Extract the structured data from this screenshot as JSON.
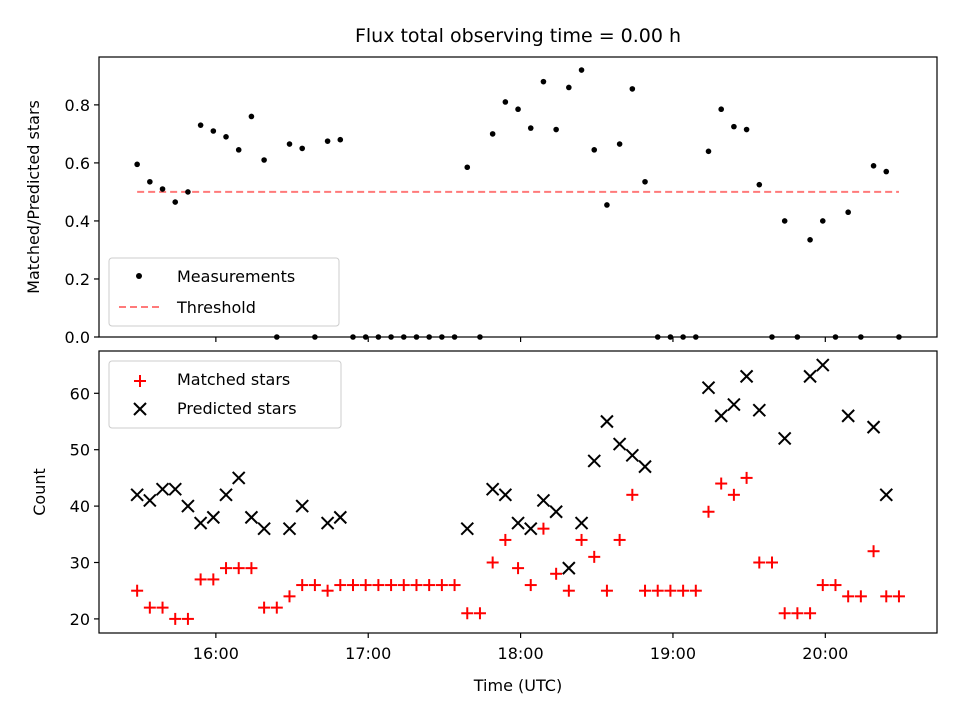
{
  "chart_data": [
    {
      "type": "scatter",
      "title": "Flux total observing time = 0.00 h",
      "xlabel": "",
      "ylabel": "Matched/Predicted stars",
      "xlim_hours": [
        15.233,
        20.733
      ],
      "ylim": [
        0,
        0.965
      ],
      "yticks": [
        0.0,
        0.2,
        0.4,
        0.6,
        0.8
      ],
      "ytick_labels": [
        "0.0",
        "0.2",
        "0.4",
        "0.6",
        "0.8"
      ],
      "grid": false,
      "legend": "lower-left",
      "series": [
        {
          "name": "Measurements",
          "marker": "dot",
          "color": "#000000",
          "t": [
            "15:29",
            "15:34",
            "15:39",
            "15:44",
            "15:49",
            "15:54",
            "15:59",
            "16:04",
            "16:09",
            "16:14",
            "16:19",
            "16:24",
            "16:29",
            "16:34",
            "16:39",
            "16:44",
            "16:49",
            "16:54",
            "16:59",
            "17:04",
            "17:09",
            "17:14",
            "17:19",
            "17:24",
            "17:29",
            "17:34",
            "17:39",
            "17:44",
            "17:49",
            "17:54",
            "17:59",
            "18:04",
            "18:09",
            "18:14",
            "18:19",
            "18:24",
            "18:29",
            "18:34",
            "18:39",
            "18:44",
            "18:49",
            "18:54",
            "18:59",
            "19:04",
            "19:09",
            "19:14",
            "19:19",
            "19:24",
            "19:29",
            "19:34",
            "19:39",
            "19:44",
            "19:49",
            "19:54",
            "19:59",
            "20:04",
            "20:09",
            "20:14",
            "20:19",
            "20:24",
            "20:29"
          ],
          "y": [
            0.595,
            0.535,
            0.51,
            0.465,
            0.5,
            0.73,
            0.71,
            0.69,
            0.645,
            0.76,
            0.61,
            0.0,
            0.665,
            0.65,
            0.0,
            0.675,
            0.68,
            0.0,
            0.0,
            0.0,
            0.0,
            0.0,
            0.0,
            0.0,
            0.0,
            0.0,
            0.585,
            0.0,
            0.7,
            0.81,
            0.785,
            0.72,
            0.88,
            0.715,
            0.86,
            0.92,
            0.645,
            0.455,
            0.665,
            0.855,
            0.535,
            0.0,
            0.0,
            0.0,
            0.0,
            0.64,
            0.785,
            0.725,
            0.715,
            0.525,
            0.0,
            0.4,
            0.0,
            0.335,
            0.4,
            0.0,
            0.43,
            0.0,
            0.59,
            0.57,
            0.0
          ]
        },
        {
          "name": "Threshold",
          "marker": "dashed-line",
          "color": "#ff7a7a",
          "t": [
            "15:29",
            "20:29"
          ],
          "y": [
            0.5,
            0.5
          ]
        }
      ]
    },
    {
      "type": "scatter",
      "title": "",
      "xlabel": "Time (UTC)",
      "ylabel": "Count",
      "xlim_hours": [
        15.233,
        20.733
      ],
      "ylim": [
        17.5,
        67.5
      ],
      "yticks": [
        20,
        30,
        40,
        50,
        60
      ],
      "ytick_labels": [
        "20",
        "30",
        "40",
        "50",
        "60"
      ],
      "xticks_hours": [
        16,
        17,
        18,
        19,
        20
      ],
      "xtick_labels": [
        "16:00",
        "17:00",
        "18:00",
        "19:00",
        "20:00"
      ],
      "grid": false,
      "legend": "top-left",
      "series": [
        {
          "name": "Matched stars",
          "marker": "plus",
          "color": "#ff0000",
          "t": [
            "15:29",
            "15:34",
            "15:39",
            "15:44",
            "15:49",
            "15:54",
            "15:59",
            "16:04",
            "16:09",
            "16:14",
            "16:19",
            "16:24",
            "16:29",
            "16:34",
            "16:39",
            "16:44",
            "16:49",
            "16:54",
            "16:59",
            "17:04",
            "17:09",
            "17:14",
            "17:19",
            "17:24",
            "17:29",
            "17:34",
            "17:39",
            "17:44",
            "17:49",
            "17:54",
            "17:59",
            "18:04",
            "18:09",
            "18:14",
            "18:19",
            "18:24",
            "18:29",
            "18:34",
            "18:39",
            "18:44",
            "18:49",
            "18:54",
            "18:59",
            "19:04",
            "19:09",
            "19:14",
            "19:19",
            "19:24",
            "19:29",
            "19:34",
            "19:39",
            "19:44",
            "19:49",
            "19:54",
            "19:59",
            "20:04",
            "20:09",
            "20:14",
            "20:19",
            "20:24",
            "20:29"
          ],
          "y": [
            25,
            22,
            22,
            20,
            20,
            27,
            27,
            29,
            29,
            29,
            22,
            22,
            24,
            26,
            26,
            25,
            26,
            26,
            26,
            26,
            26,
            26,
            26,
            26,
            26,
            26,
            21,
            21,
            30,
            34,
            29,
            26,
            36,
            28,
            25,
            34,
            31,
            25,
            34,
            42,
            25,
            25,
            25,
            25,
            25,
            39,
            44,
            42,
            45,
            30,
            30,
            21,
            21,
            21,
            26,
            26,
            24,
            24,
            32,
            24,
            24
          ]
        },
        {
          "name": "Predicted stars",
          "marker": "x",
          "color": "#000000",
          "t": [
            "15:29",
            "15:34",
            "15:39",
            "15:44",
            "15:49",
            "15:54",
            "15:59",
            "16:04",
            "16:09",
            "16:14",
            "16:19",
            "16:29",
            "16:34",
            "16:44",
            "16:49",
            "17:39",
            "17:49",
            "17:54",
            "17:59",
            "18:04",
            "18:09",
            "18:14",
            "18:19",
            "18:24",
            "18:29",
            "18:34",
            "18:39",
            "18:44",
            "18:49",
            "19:14",
            "19:19",
            "19:24",
            "19:29",
            "19:34",
            "19:44",
            "19:54",
            "19:59",
            "20:09",
            "20:19",
            "20:24"
          ],
          "y": [
            42,
            41,
            43,
            43,
            40,
            37,
            38,
            42,
            45,
            38,
            36,
            36,
            40,
            37,
            38,
            36,
            43,
            42,
            37,
            36,
            41,
            39,
            29,
            37,
            48,
            55,
            51,
            49,
            47,
            61,
            56,
            58,
            63,
            57,
            52,
            63,
            65,
            56,
            54,
            42
          ]
        }
      ]
    }
  ]
}
